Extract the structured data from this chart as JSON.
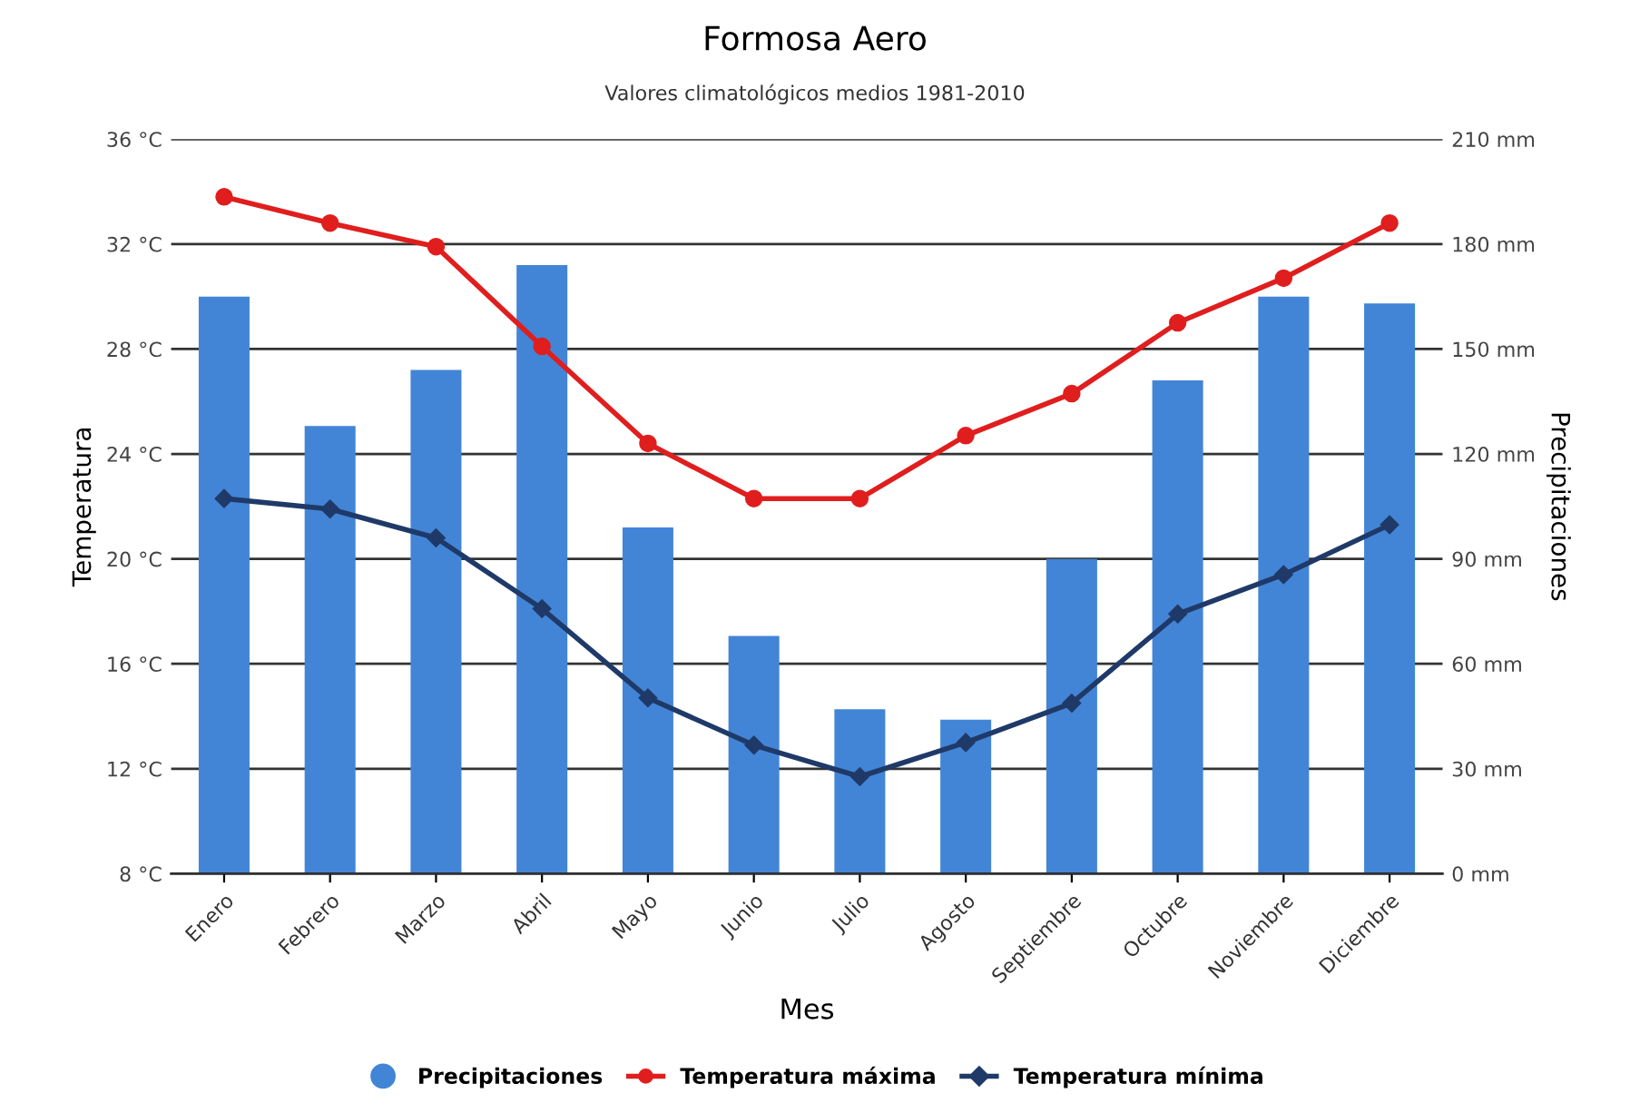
{
  "chart_data": {
    "type": "bar",
    "title": "Formosa Aero",
    "subtitle": "Valores climatológicos medios 1981-2010",
    "xlabel": "Mes",
    "ylabel": "Temperatura",
    "y2label": "Precipitaciones",
    "categories": [
      "Enero",
      "Febrero",
      "Marzo",
      "Abril",
      "Mayo",
      "Junio",
      "Julio",
      "Agosto",
      "Septiembre",
      "Octubre",
      "Noviembre",
      "Diciembre"
    ],
    "series": [
      {
        "name": "Precipitaciones",
        "axis": "y2",
        "color": "#4285d6",
        "values": [
          165,
          128,
          144,
          174,
          99,
          68,
          47,
          44,
          90,
          141,
          165,
          163
        ]
      },
      {
        "name": "Temperatura máxima",
        "type": "line",
        "color": "#e01e1e",
        "marker": "circle",
        "values": [
          33.8,
          32.8,
          31.9,
          28.1,
          24.4,
          22.3,
          22.3,
          24.7,
          26.3,
          29.0,
          30.7,
          32.8
        ]
      },
      {
        "name": "Temperatura mínima",
        "type": "line",
        "color": "#1f3a68",
        "marker": "diamond",
        "values": [
          22.3,
          21.9,
          20.8,
          18.1,
          14.7,
          12.9,
          11.7,
          13.0,
          14.5,
          17.9,
          19.4,
          21.3
        ]
      }
    ],
    "ylim": [
      8,
      36
    ],
    "yticks": [
      {
        "value": 8,
        "label": "8 °C"
      },
      {
        "value": 12,
        "label": "12 °C"
      },
      {
        "value": 16,
        "label": "16 °C"
      },
      {
        "value": 20,
        "label": "20 °C"
      },
      {
        "value": 24,
        "label": "24 °C"
      },
      {
        "value": 28,
        "label": "28 °C"
      },
      {
        "value": 32,
        "label": "32 °C"
      },
      {
        "value": 36,
        "label": "36 °C"
      }
    ],
    "y2lim": [
      0,
      210
    ],
    "y2ticks": [
      {
        "value": 0,
        "label": "0 mm"
      },
      {
        "value": 30,
        "label": "30 mm"
      },
      {
        "value": 60,
        "label": "60 mm"
      },
      {
        "value": 90,
        "label": "90 mm"
      },
      {
        "value": 120,
        "label": "120 mm"
      },
      {
        "value": 150,
        "label": "150 mm"
      },
      {
        "value": 180,
        "label": "180 mm"
      },
      {
        "value": 210,
        "label": "210 mm"
      }
    ],
    "grid": "y",
    "legend": "bottom",
    "line_style": "solid"
  }
}
